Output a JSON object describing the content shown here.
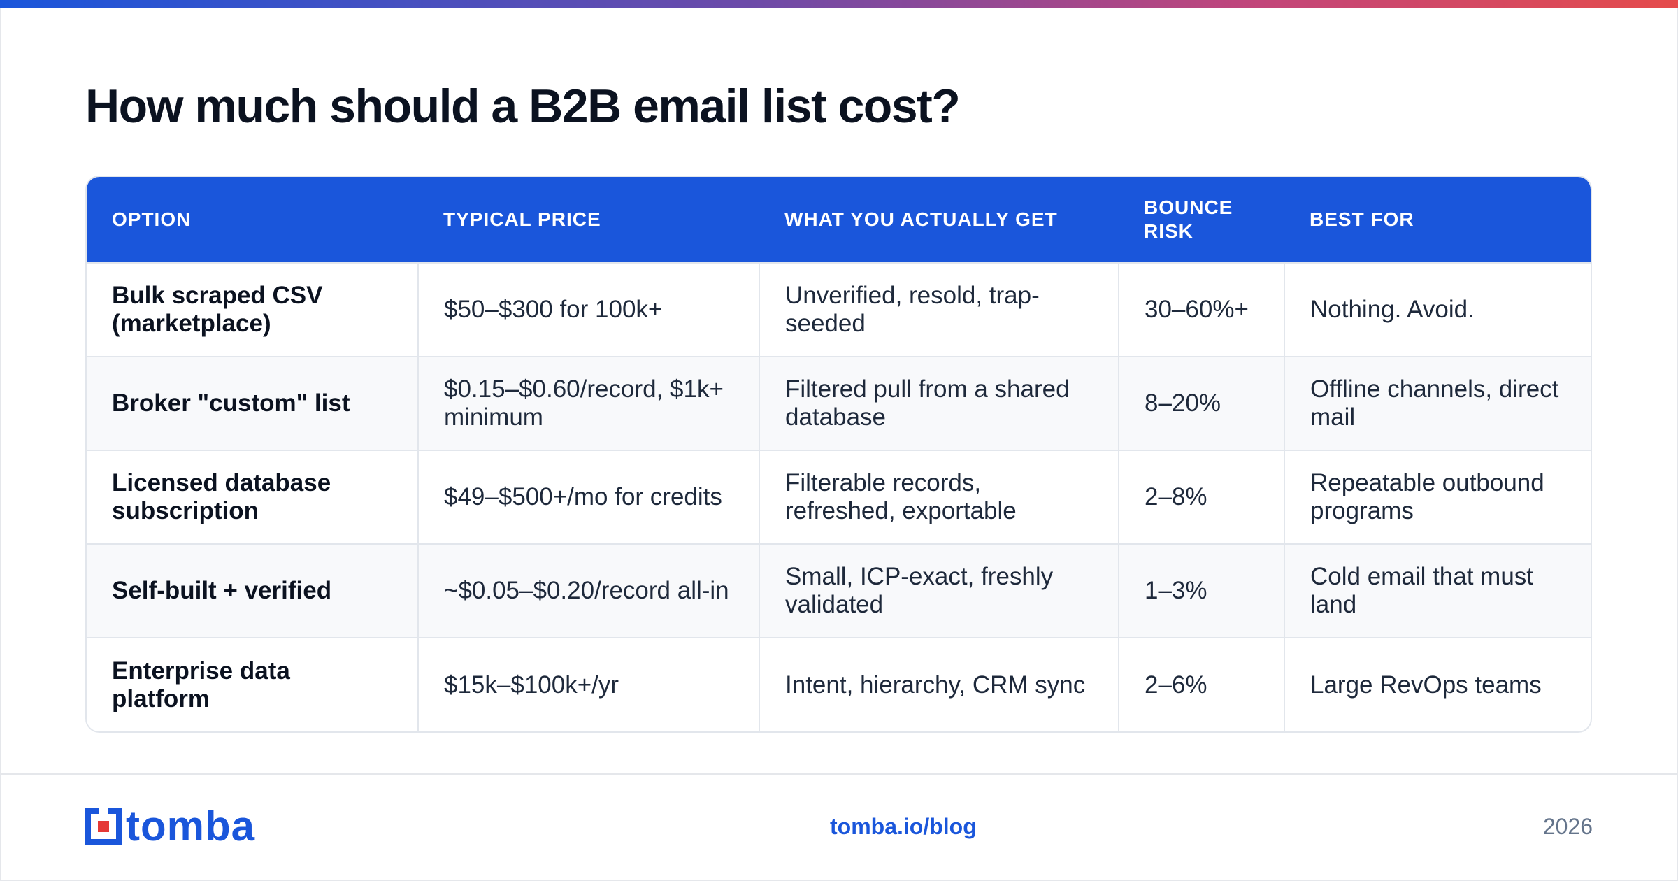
{
  "accent_color": "#1a56db",
  "title": "How much should a B2B email list cost?",
  "table": {
    "headers": [
      "OPTION",
      "TYPICAL PRICE",
      "WHAT YOU ACTUALLY GET",
      "BOUNCE RISK",
      "BEST FOR"
    ],
    "rows": [
      [
        "Bulk scraped CSV (marketplace)",
        "$50–$300 for 100k+",
        "Unverified, resold, trap-seeded",
        "30–60%+",
        "Nothing. Avoid."
      ],
      [
        "Broker \"custom\" list",
        "$0.15–$0.60/record, $1k+ minimum",
        "Filtered pull from a shared database",
        "8–20%",
        "Offline channels, direct mail"
      ],
      [
        "Licensed database subscription",
        "$49–$500+/mo for credits",
        "Filterable records, refreshed, exportable",
        "2–8%",
        "Repeatable outbound programs"
      ],
      [
        "Self-built + verified",
        "~$0.05–$0.20/record all-in",
        "Small, ICP-exact, freshly validated",
        "1–3%",
        "Cold email that must land"
      ],
      [
        "Enterprise data platform",
        "$15k–$100k+/yr",
        "Intent, hierarchy, CRM sync",
        "2–6%",
        "Large RevOps teams"
      ]
    ]
  },
  "footer": {
    "logo_text": "tomba",
    "logo_icon": "tomba-logo-icon",
    "link": "tomba.io/blog",
    "year": "2026"
  }
}
